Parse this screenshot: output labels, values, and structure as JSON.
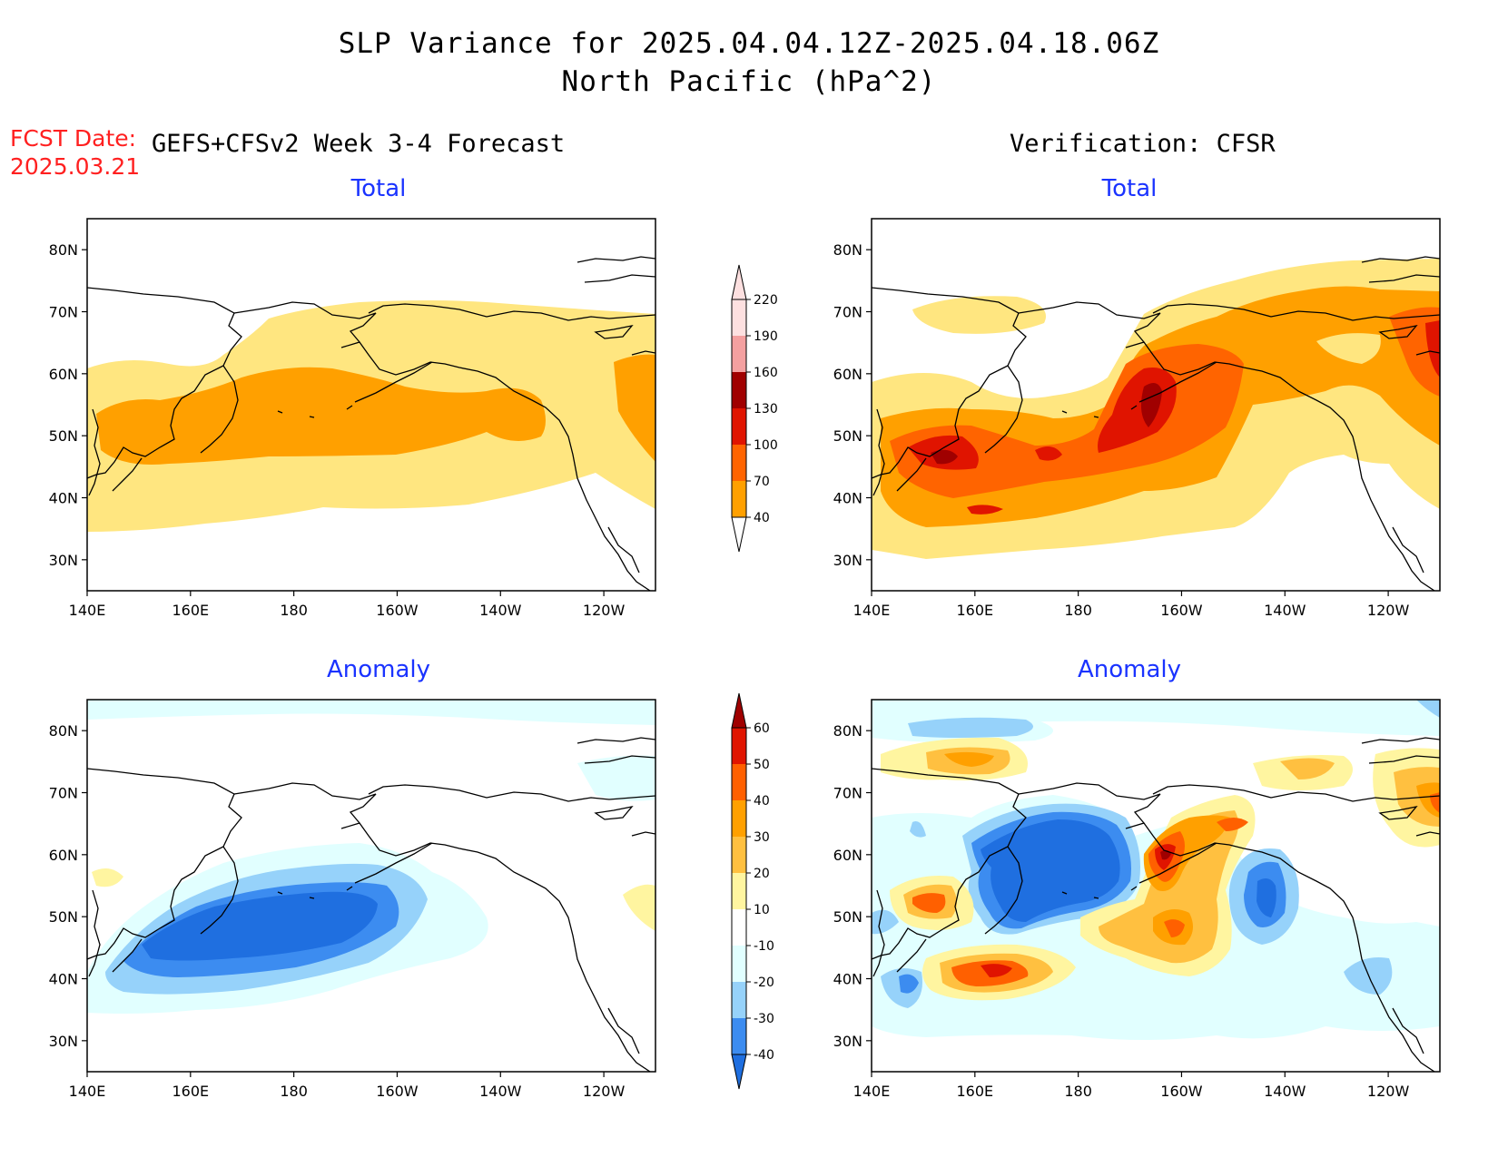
{
  "header": {
    "title_line1": "SLP Variance for 2025.04.04.12Z-2025.04.18.06Z",
    "title_line2": "North Pacific (hPa^2)",
    "fcst_label": "FCST Date:",
    "fcst_date": "2025.03.21",
    "left_column_title": "GEFS+CFSv2 Week 3-4 Forecast",
    "right_column_title": "Verification: CFSR"
  },
  "panels": {
    "forecast_total_title": "Total",
    "verif_total_title": "Total",
    "forecast_anomaly_title": "Anomaly",
    "verif_anomaly_title": "Anomaly"
  },
  "axes": {
    "lat_ticks": [
      "30N",
      "40N",
      "50N",
      "60N",
      "70N",
      "80N"
    ],
    "lat_values": [
      30,
      40,
      50,
      60,
      70,
      80
    ],
    "lon_ticks": [
      "140E",
      "160E",
      "180",
      "160W",
      "140W",
      "120W"
    ],
    "lon_values": [
      140,
      160,
      180,
      200,
      220,
      240
    ],
    "lon_range": [
      140,
      250
    ],
    "lat_range": [
      25,
      85
    ]
  },
  "colorbar_total": {
    "levels": [
      "40",
      "70",
      "100",
      "130",
      "160",
      "190",
      "220"
    ],
    "colors": [
      "#ffe680",
      "#ffa000",
      "#ff6400",
      "#e01400",
      "#a00000",
      "#f4a0a0",
      "#fde0e0"
    ]
  },
  "colorbar_anomaly": {
    "levels": [
      "-40",
      "-30",
      "-20",
      "-10",
      "10",
      "20",
      "30",
      "40",
      "50",
      "60"
    ],
    "colors": [
      "#1f6fe0",
      "#3c8cf0",
      "#96d2fa",
      "#e1ffff",
      "#ffffff",
      "#fff5a0",
      "#ffc040",
      "#ffa000",
      "#ff6000",
      "#e01400",
      "#a00000"
    ]
  },
  "palette": {
    "coast": "#000000",
    "title_blue": "#1a33ff",
    "fcst_red": "#ff2020"
  }
}
